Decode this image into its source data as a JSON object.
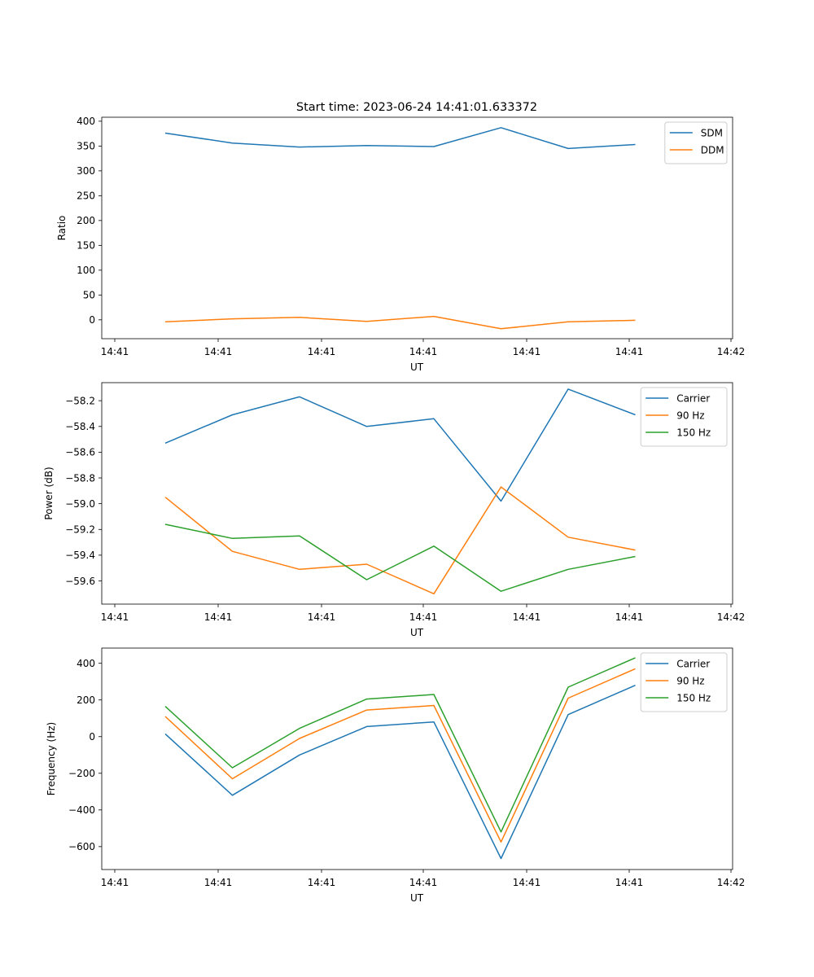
{
  "figure_title": "Start time: 2023-06-24 14:41:01.633372",
  "colors": {
    "c0": "#1f77b4",
    "c1": "#ff7f0e",
    "c2": "#2ca02c"
  },
  "chart_data": [
    {
      "type": "line",
      "title": "Start time: 2023-06-24 14:41:01.633372",
      "xlabel": "UT",
      "ylabel": "Ratio",
      "x_tick_labels": [
        "14:41",
        "14:41",
        "14:41",
        "14:41",
        "14:41",
        "14:41",
        "14:41",
        "14:42"
      ],
      "y_ticks": [
        0,
        50,
        100,
        150,
        200,
        250,
        300,
        350,
        400
      ],
      "y_tick_labels": [
        "0",
        "50",
        "100",
        "150",
        "200",
        "250",
        "300",
        "350",
        "400"
      ],
      "ylim": [
        -38,
        408
      ],
      "legend_position": "top-right",
      "grid": false,
      "series": [
        {
          "name": "SDM",
          "color": "#1f77b4",
          "values": [
            376,
            356,
            348,
            351,
            349,
            387,
            345,
            353
          ]
        },
        {
          "name": "DDM",
          "color": "#ff7f0e",
          "values": [
            -4,
            2,
            5,
            -3,
            7,
            -18,
            -4,
            -1
          ]
        }
      ]
    },
    {
      "type": "line",
      "xlabel": "UT",
      "ylabel": "Power (dB)",
      "x_tick_labels": [
        "14:41",
        "14:41",
        "14:41",
        "14:41",
        "14:41",
        "14:41",
        "14:41",
        "14:42"
      ],
      "y_ticks": [
        -59.6,
        -59.4,
        -59.2,
        -59.0,
        -58.8,
        -58.6,
        -58.4,
        -58.2
      ],
      "y_tick_labels": [
        "−59.6",
        "−59.4",
        "−59.2",
        "−59.0",
        "−58.8",
        "−58.6",
        "−58.4",
        "−58.2"
      ],
      "ylim": [
        -59.78,
        -58.06
      ],
      "legend_position": "top-right",
      "grid": false,
      "series": [
        {
          "name": "Carrier",
          "color": "#1f77b4",
          "values": [
            -58.53,
            -58.31,
            -58.17,
            -58.4,
            -58.34,
            -58.98,
            -58.11,
            -58.31
          ]
        },
        {
          "name": "90 Hz",
          "color": "#ff7f0e",
          "values": [
            -58.95,
            -59.37,
            -59.51,
            -59.47,
            -59.7,
            -58.87,
            -59.26,
            -59.36
          ]
        },
        {
          "name": "150 Hz",
          "color": "#2ca02c",
          "values": [
            -59.16,
            -59.27,
            -59.25,
            -59.59,
            -59.33,
            -59.68,
            -59.51,
            -59.41
          ]
        }
      ]
    },
    {
      "type": "line",
      "xlabel": "UT",
      "ylabel": "Frequency (Hz)",
      "x_tick_labels": [
        "14:41",
        "14:41",
        "14:41",
        "14:41",
        "14:41",
        "14:41",
        "14:41",
        "14:42"
      ],
      "y_ticks": [
        -600,
        -400,
        -200,
        0,
        200,
        400
      ],
      "y_tick_labels": [
        "−600",
        "−400",
        "−200",
        "0",
        "200",
        "400"
      ],
      "ylim": [
        -725,
        483
      ],
      "legend_position": "top-right",
      "grid": false,
      "series": [
        {
          "name": "Carrier",
          "color": "#1f77b4",
          "values": [
            15,
            -320,
            -100,
            55,
            80,
            -665,
            120,
            280
          ]
        },
        {
          "name": "90 Hz",
          "color": "#ff7f0e",
          "values": [
            110,
            -230,
            -10,
            145,
            170,
            -575,
            210,
            370
          ]
        },
        {
          "name": "150 Hz",
          "color": "#2ca02c",
          "values": [
            165,
            -170,
            45,
            205,
            230,
            -520,
            270,
            430
          ]
        }
      ]
    }
  ]
}
